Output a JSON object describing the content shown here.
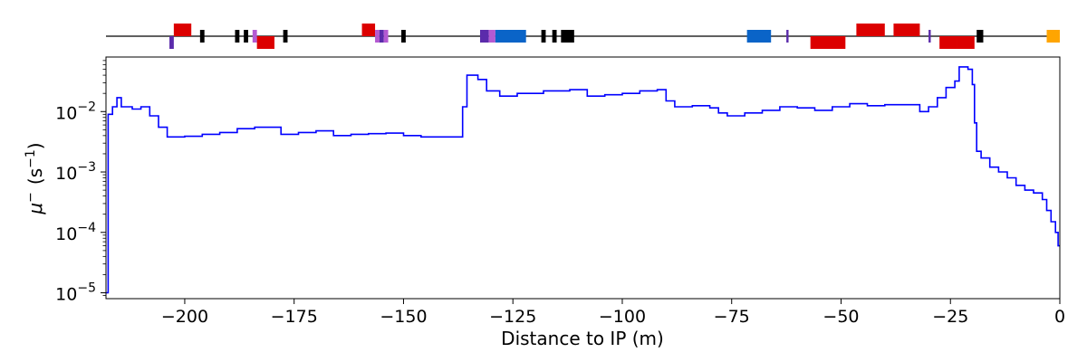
{
  "chart_data": {
    "type": "line",
    "title": "",
    "xlabel": "Distance to IP (m)",
    "ylabel_main": "μ",
    "ylabel_sup": "−",
    "ylabel_unit": "(s",
    "ylabel_unit_sup": "−1",
    "ylabel_unit_close": ")",
    "x_scale": "linear",
    "y_scale": "log",
    "xlim": [
      -218,
      0
    ],
    "ylim": [
      8e-06,
      0.08
    ],
    "x_ticks": [
      -200,
      -175,
      -150,
      -125,
      -100,
      -75,
      -50,
      -25,
      0
    ],
    "x_tick_labels": [
      "−200",
      "−175",
      "−150",
      "−125",
      "−100",
      "−75",
      "−50",
      "−25",
      "0"
    ],
    "y_ticks": [
      {
        "value": 1e-05,
        "base": "10",
        "exp": "−5"
      },
      {
        "value": 0.0001,
        "base": "10",
        "exp": "−4"
      },
      {
        "value": 0.001,
        "base": "10",
        "exp": "−3"
      },
      {
        "value": 0.01,
        "base": "10",
        "exp": "−2"
      }
    ],
    "grid": false,
    "series": [
      {
        "color": "#0000ff",
        "style": "step",
        "points": [
          [
            -218,
            1e-05
          ],
          [
            -217.5,
            0.009
          ],
          [
            -216.5,
            0.012
          ],
          [
            -215.5,
            0.017
          ],
          [
            -214.5,
            0.012
          ],
          [
            -212,
            0.011
          ],
          [
            -210,
            0.012
          ],
          [
            -208,
            0.0085
          ],
          [
            -206,
            0.0055
          ],
          [
            -204,
            0.0038
          ],
          [
            -200,
            0.0039
          ],
          [
            -196,
            0.0042
          ],
          [
            -192,
            0.0045
          ],
          [
            -188,
            0.0052
          ],
          [
            -184,
            0.0055
          ],
          [
            -180,
            0.0055
          ],
          [
            -178,
            0.0042
          ],
          [
            -174,
            0.0045
          ],
          [
            -170,
            0.0048
          ],
          [
            -166,
            0.004
          ],
          [
            -162,
            0.0042
          ],
          [
            -158,
            0.0043
          ],
          [
            -154,
            0.0044
          ],
          [
            -150,
            0.004
          ],
          [
            -146,
            0.0038
          ],
          [
            -142,
            0.0038
          ],
          [
            -138,
            0.0038
          ],
          [
            -136.5,
            0.012
          ],
          [
            -135.5,
            0.04
          ],
          [
            -133,
            0.034
          ],
          [
            -131,
            0.022
          ],
          [
            -128,
            0.018
          ],
          [
            -124,
            0.02
          ],
          [
            -118,
            0.022
          ],
          [
            -112,
            0.023
          ],
          [
            -108,
            0.018
          ],
          [
            -104,
            0.019
          ],
          [
            -100,
            0.02
          ],
          [
            -96,
            0.022
          ],
          [
            -92,
            0.023
          ],
          [
            -90,
            0.015
          ],
          [
            -88,
            0.012
          ],
          [
            -84,
            0.0125
          ],
          [
            -80,
            0.0115
          ],
          [
            -78,
            0.0095
          ],
          [
            -76,
            0.0085
          ],
          [
            -72,
            0.0095
          ],
          [
            -68,
            0.0105
          ],
          [
            -64,
            0.012
          ],
          [
            -60,
            0.0115
          ],
          [
            -56,
            0.0105
          ],
          [
            -52,
            0.012
          ],
          [
            -48,
            0.0135
          ],
          [
            -44,
            0.0125
          ],
          [
            -40,
            0.013
          ],
          [
            -36,
            0.013
          ],
          [
            -32,
            0.01
          ],
          [
            -30,
            0.012
          ],
          [
            -28,
            0.017
          ],
          [
            -26,
            0.025
          ],
          [
            -24,
            0.032
          ],
          [
            -23,
            0.055
          ],
          [
            -21,
            0.05
          ],
          [
            -20,
            0.028
          ],
          [
            -19.5,
            0.0065
          ],
          [
            -19,
            0.0022
          ],
          [
            -18,
            0.0017
          ],
          [
            -16,
            0.0012
          ],
          [
            -14,
            0.001
          ],
          [
            -12,
            0.0008
          ],
          [
            -10,
            0.0006
          ],
          [
            -8,
            0.0005
          ],
          [
            -6,
            0.00045
          ],
          [
            -4,
            0.00035
          ],
          [
            -3,
            0.00023
          ],
          [
            -2,
            0.00015
          ],
          [
            -1,
            0.0001
          ],
          [
            -0.4,
            6e-05
          ],
          [
            0,
            6e-05
          ]
        ]
      }
    ]
  },
  "beamline": {
    "elements": [
      {
        "x0": -203.5,
        "x1": -202.5,
        "side": "below",
        "color": "#5b2bab"
      },
      {
        "x0": -202.5,
        "x1": -198.5,
        "side": "above",
        "color": "#dc0000"
      },
      {
        "x0": -196.5,
        "x1": -195.5,
        "side": "both",
        "color": "#000000"
      },
      {
        "x0": -188.5,
        "x1": -187.5,
        "side": "both",
        "color": "#000000"
      },
      {
        "x0": -186.5,
        "x1": -185.5,
        "side": "both",
        "color": "#000000"
      },
      {
        "x0": -184.5,
        "x1": -183.5,
        "side": "both",
        "color": "#b45ad2"
      },
      {
        "x0": -183.5,
        "x1": -179.5,
        "side": "below",
        "color": "#dc0000"
      },
      {
        "x0": -177.5,
        "x1": -176.5,
        "side": "both",
        "color": "#000000"
      },
      {
        "x0": -159.5,
        "x1": -156.5,
        "side": "above",
        "color": "#dc0000"
      },
      {
        "x0": -156.5,
        "x1": -155.5,
        "side": "both",
        "color": "#b45ad2"
      },
      {
        "x0": -155.5,
        "x1": -154.5,
        "side": "both",
        "color": "#5b2bab"
      },
      {
        "x0": -154.5,
        "x1": -153.5,
        "side": "both",
        "color": "#b45ad2"
      },
      {
        "x0": -150.5,
        "x1": -149.5,
        "side": "both",
        "color": "#000000"
      },
      {
        "x0": -132.5,
        "x1": -130.5,
        "side": "both",
        "color": "#5b2bab"
      },
      {
        "x0": -130.5,
        "x1": -129,
        "side": "both",
        "color": "#b45ad2"
      },
      {
        "x0": -129,
        "x1": -122,
        "side": "both",
        "color": "#0a64c8"
      },
      {
        "x0": -118.5,
        "x1": -117.5,
        "side": "both",
        "color": "#000000"
      },
      {
        "x0": -116,
        "x1": -115,
        "side": "both",
        "color": "#000000"
      },
      {
        "x0": -114,
        "x1": -111,
        "side": "both",
        "color": "#000000"
      },
      {
        "x0": -71.5,
        "x1": -66,
        "side": "both",
        "color": "#0a64c8"
      },
      {
        "x0": -62.5,
        "x1": -62,
        "side": "both",
        "color": "#5b2bab"
      },
      {
        "x0": -57,
        "x1": -53,
        "side": "below",
        "color": "#dc0000"
      },
      {
        "x0": -53,
        "x1": -49,
        "side": "below",
        "color": "#dc0000"
      },
      {
        "x0": -46.5,
        "x1": -40,
        "side": "above",
        "color": "#dc0000"
      },
      {
        "x0": -38,
        "x1": -32,
        "side": "above",
        "color": "#dc0000"
      },
      {
        "x0": -30,
        "x1": -29.5,
        "side": "both",
        "color": "#5b2bab"
      },
      {
        "x0": -27.5,
        "x1": -23.5,
        "side": "below",
        "color": "#dc0000"
      },
      {
        "x0": -23.5,
        "x1": -19.5,
        "side": "below",
        "color": "#dc0000"
      },
      {
        "x0": -19,
        "x1": -17.5,
        "side": "both",
        "color": "#000000"
      },
      {
        "x0": -3,
        "x1": 0,
        "side": "both",
        "color": "#ffa500"
      }
    ]
  }
}
